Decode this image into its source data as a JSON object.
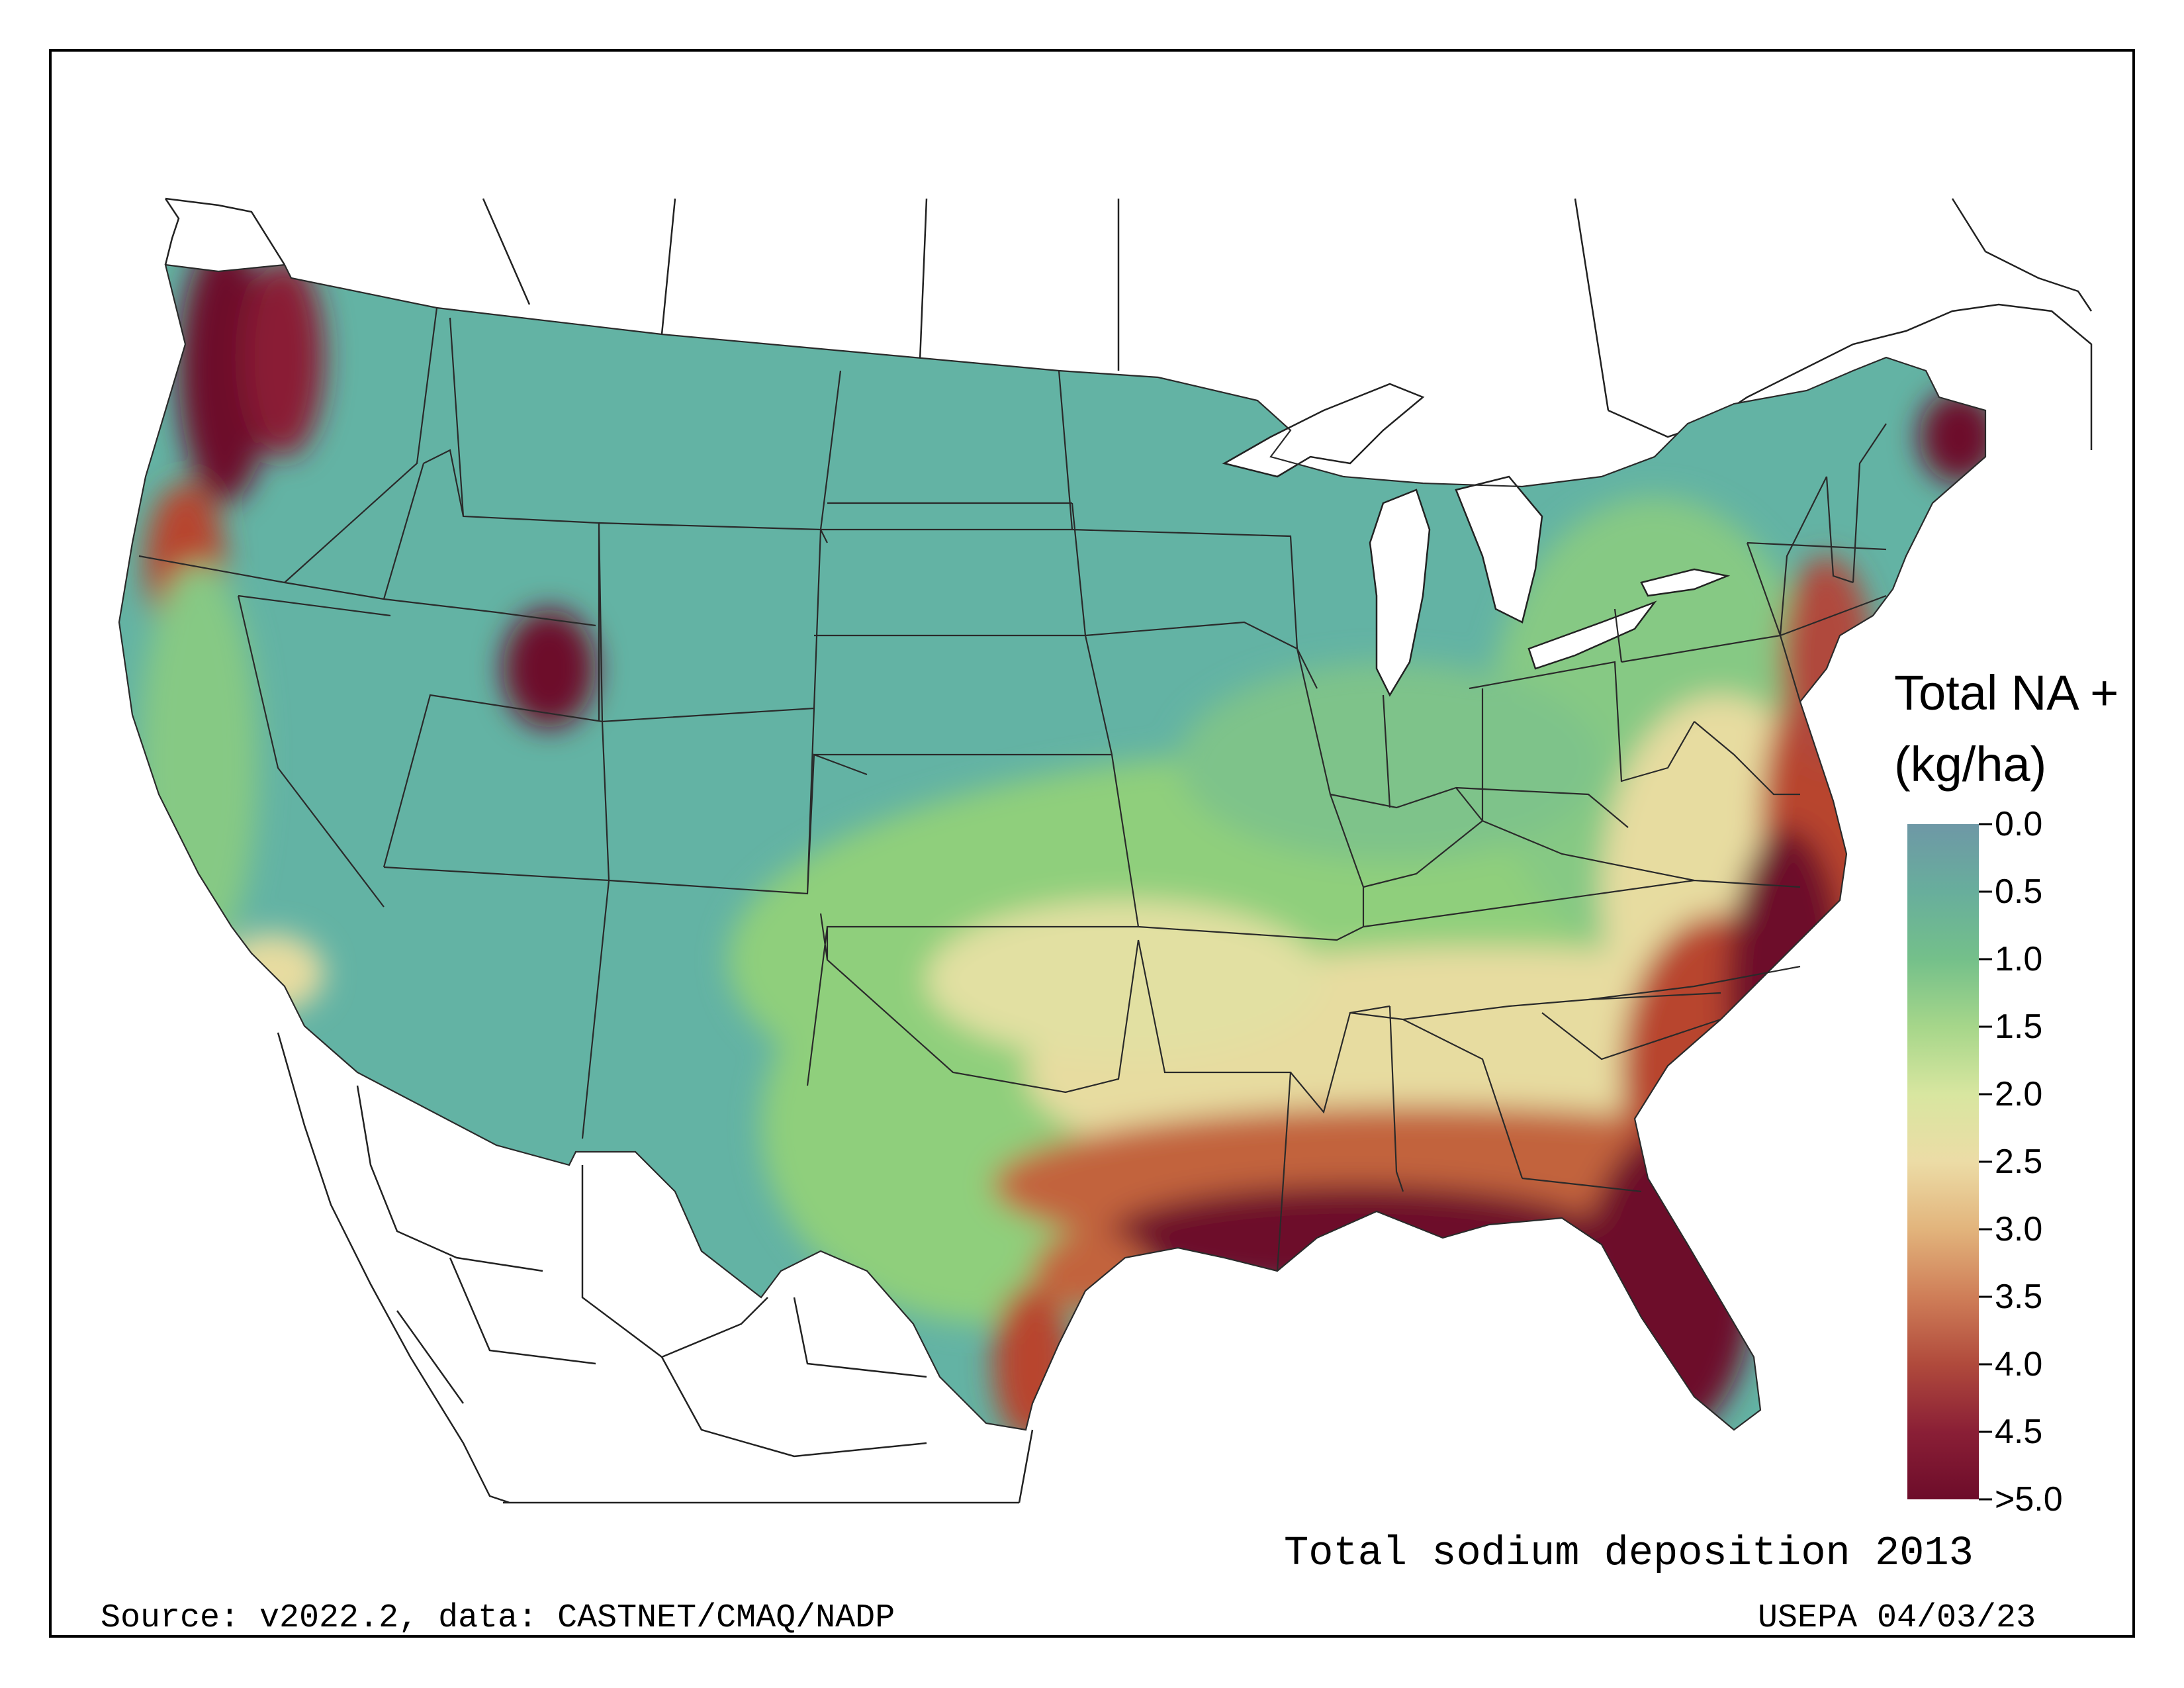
{
  "map": {
    "title": "Total sodium deposition 2013",
    "source": "Source: v2022.2, data: CASTNET/CMAQ/NADP",
    "credit": "USEPA 04/03/23"
  },
  "legend": {
    "title_line1": "Total NA +",
    "title_line2": "(kg/ha)",
    "ticks": [
      "0.0",
      "0.5",
      "1.0",
      "1.5",
      "2.0",
      "2.5",
      "3.0",
      "3.5",
      "4.0",
      "4.5",
      ">5.0"
    ],
    "colors": [
      "#6e98a6",
      "#68ae9c",
      "#74c08a",
      "#a6d68a",
      "#d8e6a0",
      "#ecdca6",
      "#e2b47c",
      "#cf7e58",
      "#b04a3c",
      "#8a1f36",
      "#6d0c2a"
    ]
  },
  "colors": {
    "low": "#63b3a4",
    "mid": "#8fcf7c",
    "moderate": "#e7dca0",
    "high": "#b8452f",
    "very_high": "#6d0c2a",
    "water": "#ffffff",
    "border": "#1a1a1a"
  }
}
